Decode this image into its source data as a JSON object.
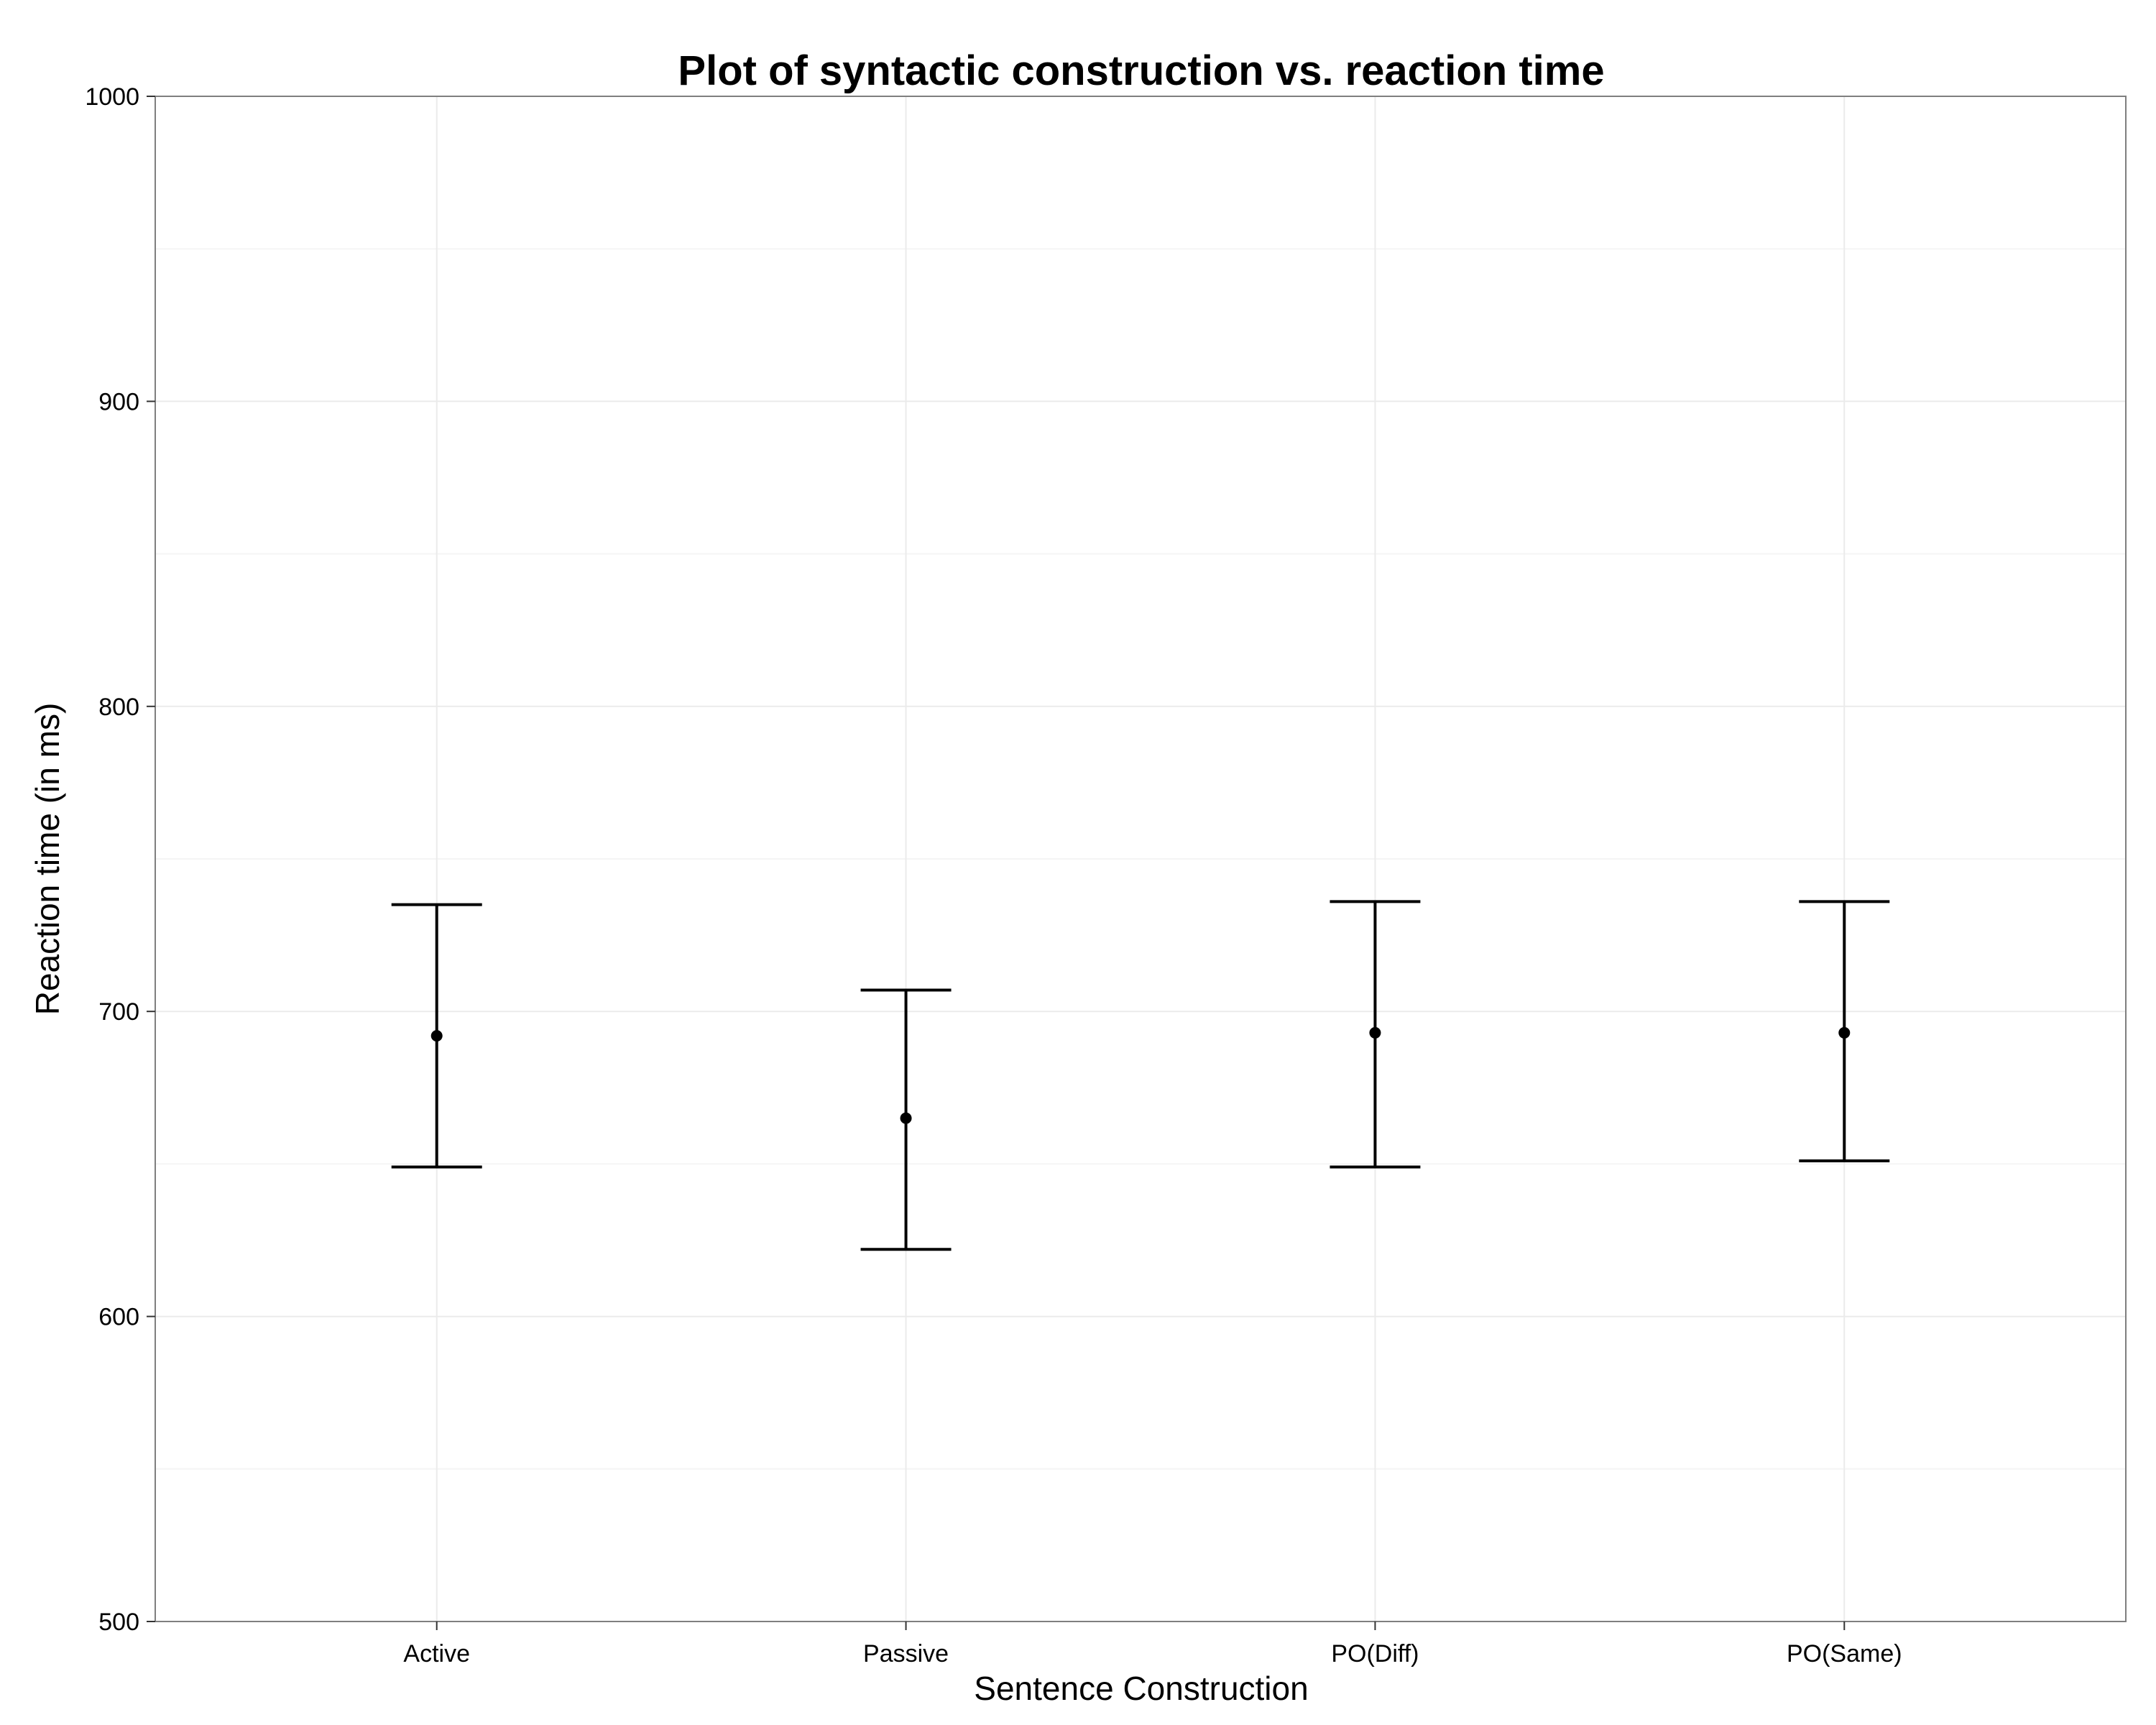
{
  "chart_data": {
    "type": "errorbar",
    "title": "Plot of syntactic construction vs. reaction time",
    "xlabel": "Sentence Construction",
    "ylabel": "Reaction time (in ms)",
    "categories": [
      "Active",
      "Passive",
      "PO(Diff)",
      "PO(Same)"
    ],
    "values": [
      692,
      665,
      693,
      693
    ],
    "lower": [
      649,
      622,
      649,
      651
    ],
    "upper": [
      735,
      707,
      736,
      736
    ],
    "ylim": [
      500,
      1000
    ],
    "yticks": [
      500,
      600,
      700,
      800,
      900,
      1000
    ],
    "grid": true,
    "legend": "none"
  }
}
